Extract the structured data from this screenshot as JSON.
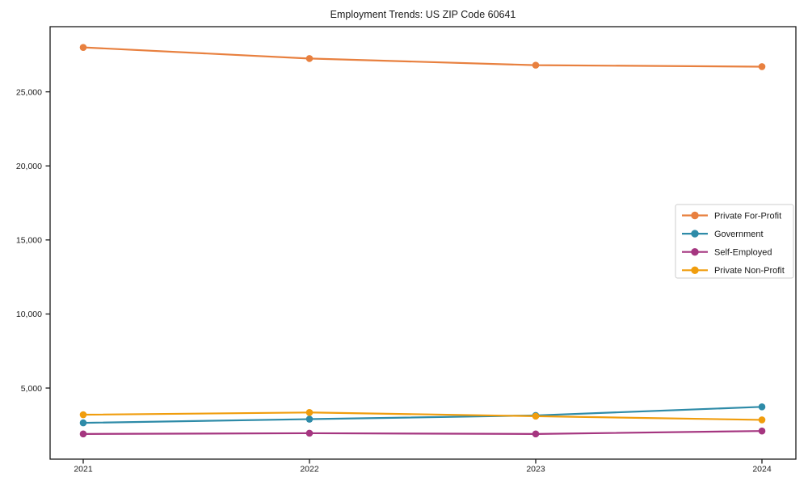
{
  "window": {
    "background_color": "#ffffff",
    "axis_color": "#1a1a1a",
    "legend_border_color": "#cccccc"
  },
  "chart_data": {
    "type": "line",
    "title": "Employment Trends: US ZIP Code 60641",
    "xlabel": "",
    "ylabel": "",
    "categories": [
      "2021",
      "2022",
      "2023",
      "2024"
    ],
    "series": [
      {
        "name": "Private For-Profit",
        "color": "#E8803F",
        "values": [
          28000,
          27250,
          26800,
          26700
        ]
      },
      {
        "name": "Government",
        "color": "#2E8BA8",
        "values": [
          2650,
          2900,
          3150,
          3730
        ]
      },
      {
        "name": "Self-Employed",
        "color": "#A53680",
        "values": [
          1900,
          1950,
          1900,
          2100
        ]
      },
      {
        "name": "Private Non-Profit",
        "color": "#F09D0D",
        "values": [
          3200,
          3350,
          3100,
          2850
        ]
      }
    ],
    "y_ticks": [
      5000,
      10000,
      15000,
      20000,
      25000
    ],
    "y_tick_labels": [
      "5,000",
      "10,000",
      "15,000",
      "20,000",
      "25,000"
    ],
    "ylim": [
      200,
      29400
    ],
    "grid": false,
    "legend_position": "center-right",
    "markers": "circle"
  }
}
